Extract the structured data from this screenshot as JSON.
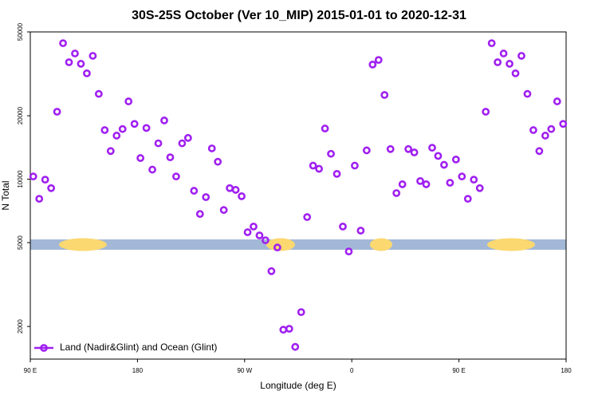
{
  "chart_data": {
    "type": "scatter",
    "title": "30S-25S October (Ver 10_MIP)   2015-01-01 to 2020-12-31",
    "xlabel": "Longitude (deg E)",
    "ylabel": "N Total",
    "log_y": true,
    "legend": "bottom-left",
    "xlim": [
      90,
      540
    ],
    "ylim": [
      1400,
      50000
    ],
    "xticks": [
      {
        "value": 90,
        "label": "90 E"
      },
      {
        "value": 180,
        "label": "180"
      },
      {
        "value": 270,
        "label": "90 W"
      },
      {
        "value": 360,
        "label": "0"
      },
      {
        "value": 450,
        "label": "90 E"
      },
      {
        "value": 540,
        "label": "180"
      }
    ],
    "yticks": [
      2000,
      5000,
      10000,
      20000,
      50000
    ],
    "series": [
      {
        "name": "Land (Nadir&Glint) and Ocean (Glint)",
        "color": "#a020f0",
        "x": [
          92.5,
          97.5,
          102.5,
          107.5,
          112.5,
          117.5,
          122.5,
          127.5,
          132.5,
          137.5,
          142.5,
          147.5,
          152.5,
          157.5,
          162.5,
          167.5,
          172.5,
          177.5,
          182.5,
          187.5,
          192.5,
          197.5,
          202.5,
          207.5,
          212.5,
          217.5,
          222.5,
          227.5,
          232.5,
          237.5,
          242.5,
          247.5,
          252.5,
          257.5,
          262.5,
          267.5,
          272.5,
          277.5,
          282.5,
          287.5,
          292.5,
          297.5,
          302.5,
          307.5,
          312.5,
          317.5,
          322.5,
          327.5,
          332.5,
          337.5,
          342.5,
          347.5,
          352.5,
          357.5,
          362.5,
          367.5,
          372.5,
          377.5,
          382.5,
          387.5,
          392.5,
          397.5,
          402.5,
          407.5,
          412.5,
          417.5,
          422.5,
          427.5,
          432.5,
          437.5,
          442.5,
          447.5,
          452.5,
          457.5,
          462.5,
          467.5,
          472.5,
          477.5,
          482.5,
          487.5,
          492.5,
          497.5,
          502.5,
          507.5,
          512.5,
          517.5,
          522.5,
          527.5,
          532.5,
          537.5
        ],
        "values": [
          10300,
          8070,
          9950,
          9070,
          20900,
          44200,
          35900,
          39500,
          35300,
          31800,
          38500,
          25400,
          17100,
          13600,
          16100,
          17300,
          23400,
          18300,
          12600,
          17500,
          11100,
          14800,
          19000,
          12700,
          10300,
          14800,
          15700,
          8810,
          6840,
          8220,
          14000,
          12100,
          7140,
          9070,
          8900,
          8300,
          5600,
          5960,
          5410,
          5130,
          3660,
          4740,
          1930,
          1950,
          1600,
          2340,
          6610,
          11600,
          11200,
          17400,
          13200,
          10600,
          5960,
          4540,
          11600,
          5700,
          13700,
          35000,
          36800,
          25100,
          13900,
          8590,
          9460,
          13900,
          13400,
          9800,
          9460,
          14100,
          12900,
          11700,
          9620,
          12400,
          10300,
          8070,
          9950,
          9070,
          20900,
          44200,
          35900,
          39500,
          35300,
          31800,
          38500,
          25400,
          17100,
          13600,
          16100,
          17300,
          23400,
          18300
        ]
      }
    ]
  }
}
